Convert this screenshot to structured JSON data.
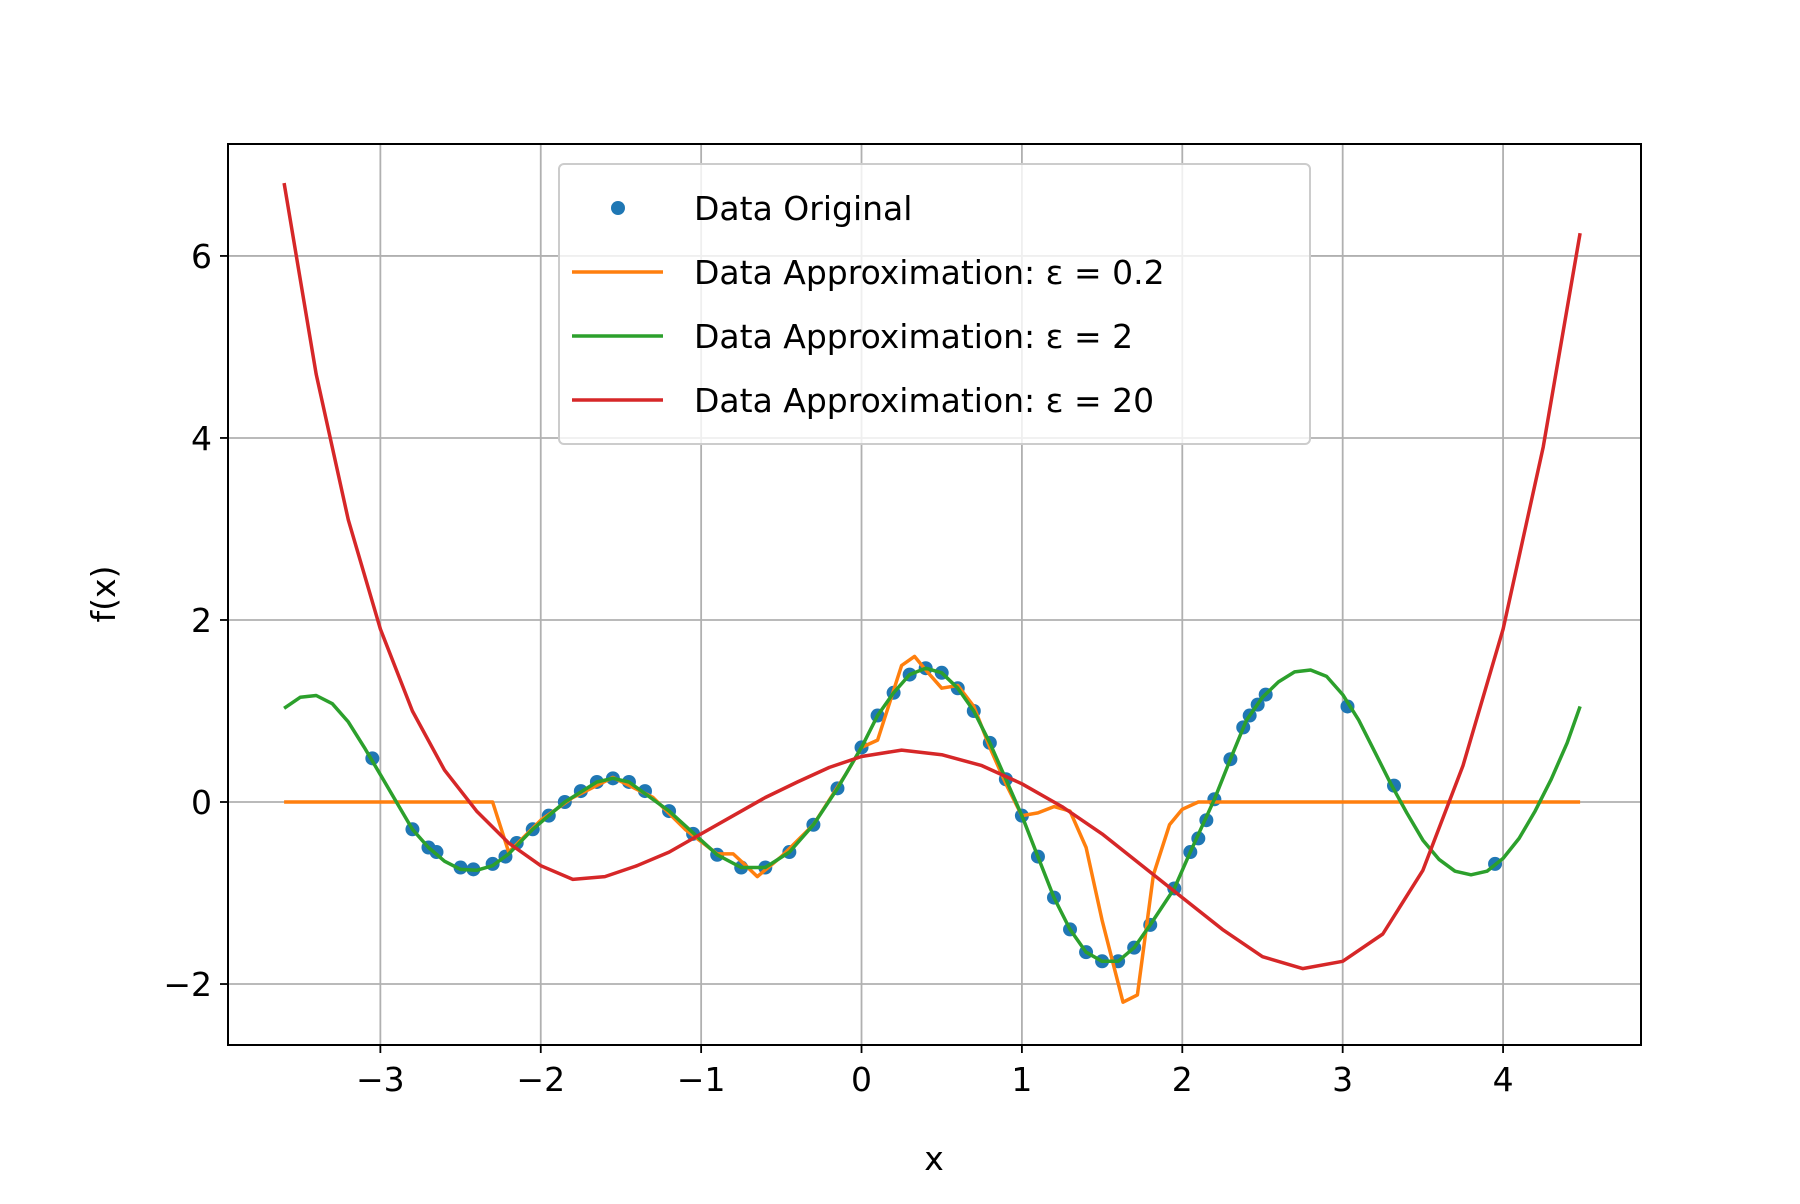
{
  "chart_data": {
    "type": "line",
    "xlabel": "x",
    "ylabel": "f(x)",
    "xlim": [
      -3.95,
      4.86
    ],
    "ylim": [
      -2.67,
      7.23
    ],
    "xticks": [
      {
        "value": -3,
        "label": "−3"
      },
      {
        "value": -2,
        "label": "−2"
      },
      {
        "value": -1,
        "label": "−1"
      },
      0,
      1,
      2,
      3,
      4
    ],
    "yticks": [
      {
        "value": -2,
        "label": "−2"
      },
      0,
      2,
      4,
      6
    ],
    "grid": true,
    "legend": "upper center",
    "series": [
      {
        "name": "Data Original",
        "color": "#1f77b4",
        "style": "markers",
        "x": [
          -3.05,
          -2.8,
          -2.7,
          -2.65,
          -2.5,
          -2.42,
          -2.3,
          -2.22,
          -2.15,
          -2.05,
          -1.95,
          -1.85,
          -1.75,
          -1.65,
          -1.55,
          -1.45,
          -1.35,
          -1.2,
          -1.05,
          -0.9,
          -0.75,
          -0.6,
          -0.45,
          -0.3,
          -0.15,
          0,
          0.1,
          0.2,
          0.3,
          0.4,
          0.5,
          0.6,
          0.7,
          0.8,
          0.9,
          1.0,
          1.1,
          1.2,
          1.3,
          1.4,
          1.5,
          1.6,
          1.7,
          1.8,
          1.95,
          2.05,
          2.1,
          2.15,
          2.2,
          2.3,
          2.38,
          2.42,
          2.47,
          2.52,
          3.03,
          3.32,
          3.95
        ],
        "values": [
          0.48,
          -0.3,
          -0.5,
          -0.55,
          -0.72,
          -0.74,
          -0.68,
          -0.6,
          -0.45,
          -0.3,
          -0.15,
          0.0,
          0.12,
          0.22,
          0.26,
          0.22,
          0.12,
          -0.1,
          -0.35,
          -0.58,
          -0.72,
          -0.72,
          -0.55,
          -0.25,
          0.15,
          0.6,
          0.95,
          1.2,
          1.4,
          1.47,
          1.42,
          1.25,
          1.0,
          0.65,
          0.25,
          -0.15,
          -0.6,
          -1.05,
          -1.4,
          -1.65,
          -1.75,
          -1.75,
          -1.6,
          -1.35,
          -0.95,
          -0.55,
          -0.4,
          -0.2,
          0.03,
          0.47,
          0.82,
          0.95,
          1.07,
          1.18,
          1.05,
          0.18,
          -0.68
        ]
      },
      {
        "name": "Data Approximation: ε = 0.2",
        "color": "#ff7f0e",
        "style": "line",
        "x": [
          -3.6,
          -2.3,
          -2.2,
          -2.0,
          -1.8,
          -1.55,
          -1.3,
          -1.1,
          -0.9,
          -0.8,
          -0.72,
          -0.65,
          -0.5,
          -0.3,
          -0.1,
          0,
          0.1,
          0.25,
          0.33,
          0.4,
          0.5,
          0.6,
          0.7,
          0.8,
          0.9,
          1.0,
          1.1,
          1.2,
          1.3,
          1.4,
          1.5,
          1.63,
          1.72,
          1.82,
          1.92,
          2.0,
          2.1,
          4.48
        ],
        "values": [
          0,
          0,
          -0.55,
          -0.2,
          0.05,
          0.27,
          0.05,
          -0.3,
          -0.57,
          -0.57,
          -0.7,
          -0.82,
          -0.6,
          -0.25,
          0.3,
          0.6,
          0.68,
          1.5,
          1.6,
          1.45,
          1.25,
          1.28,
          1.05,
          0.6,
          0.2,
          -0.15,
          -0.12,
          -0.05,
          -0.1,
          -0.5,
          -1.3,
          -2.2,
          -2.12,
          -0.8,
          -0.25,
          -0.08,
          0,
          0
        ]
      },
      {
        "name": "Data Approximation: ε = 2",
        "color": "#2ca02c",
        "style": "line",
        "x": [
          -3.6,
          -3.5,
          -3.4,
          -3.3,
          -3.2,
          -3.1,
          -3.0,
          -2.9,
          -2.8,
          -2.7,
          -2.6,
          -2.5,
          -2.4,
          -2.3,
          -2.2,
          -2.05,
          -1.85,
          -1.65,
          -1.55,
          -1.45,
          -1.2,
          -0.9,
          -0.75,
          -0.6,
          -0.45,
          -0.3,
          -0.15,
          0,
          0.1,
          0.2,
          0.3,
          0.4,
          0.5,
          0.6,
          0.7,
          0.8,
          0.9,
          1.0,
          1.1,
          1.2,
          1.3,
          1.4,
          1.5,
          1.6,
          1.7,
          1.8,
          1.95,
          2.05,
          2.2,
          2.3,
          2.4,
          2.5,
          2.6,
          2.7,
          2.8,
          2.9,
          3.0,
          3.1,
          3.2,
          3.3,
          3.4,
          3.5,
          3.6,
          3.7,
          3.8,
          3.9,
          4.0,
          4.1,
          4.2,
          4.3,
          4.4,
          4.48
        ],
        "values": [
          1.03,
          1.15,
          1.17,
          1.08,
          0.88,
          0.6,
          0.3,
          0.0,
          -0.3,
          -0.5,
          -0.65,
          -0.74,
          -0.75,
          -0.7,
          -0.57,
          -0.3,
          0.0,
          0.22,
          0.26,
          0.22,
          -0.1,
          -0.58,
          -0.72,
          -0.72,
          -0.55,
          -0.25,
          0.15,
          0.6,
          0.95,
          1.2,
          1.4,
          1.47,
          1.42,
          1.25,
          1.0,
          0.65,
          0.25,
          -0.15,
          -0.6,
          -1.05,
          -1.4,
          -1.65,
          -1.75,
          -1.75,
          -1.6,
          -1.35,
          -0.95,
          -0.55,
          0.03,
          0.47,
          0.9,
          1.15,
          1.32,
          1.43,
          1.45,
          1.38,
          1.18,
          0.9,
          0.55,
          0.2,
          -0.12,
          -0.42,
          -0.63,
          -0.76,
          -0.8,
          -0.76,
          -0.62,
          -0.4,
          -0.1,
          0.25,
          0.65,
          1.05
        ]
      },
      {
        "name": "Data Approximation: ε = 20",
        "color": "#d62728",
        "style": "line",
        "x": [
          -3.6,
          -3.4,
          -3.2,
          -3.0,
          -2.8,
          -2.6,
          -2.4,
          -2.2,
          -2.0,
          -1.8,
          -1.6,
          -1.4,
          -1.2,
          -1.0,
          -0.8,
          -0.6,
          -0.4,
          -0.2,
          0,
          0.25,
          0.5,
          0.75,
          1.0,
          1.25,
          1.5,
          1.75,
          2.0,
          2.25,
          2.5,
          2.75,
          3.0,
          3.25,
          3.5,
          3.75,
          4.0,
          4.25,
          4.48
        ],
        "values": [
          6.8,
          4.7,
          3.1,
          1.9,
          1.0,
          0.35,
          -0.1,
          -0.45,
          -0.7,
          -0.85,
          -0.82,
          -0.7,
          -0.55,
          -0.35,
          -0.15,
          0.05,
          0.22,
          0.38,
          0.5,
          0.57,
          0.52,
          0.4,
          0.2,
          -0.05,
          -0.35,
          -0.7,
          -1.05,
          -1.4,
          -1.7,
          -1.83,
          -1.75,
          -1.45,
          -0.75,
          0.4,
          1.9,
          3.9,
          6.25
        ]
      }
    ]
  }
}
